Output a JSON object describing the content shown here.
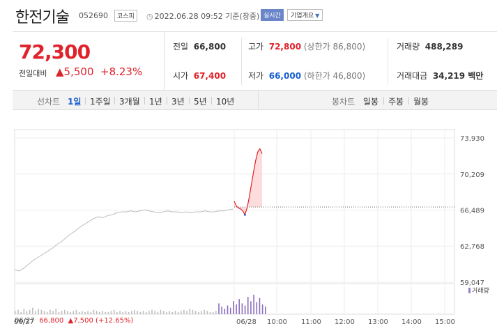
{
  "header": {
    "title": "한전기술",
    "code": "052690",
    "market": "코스피",
    "as_of": "2022.06.28 09:52 기준(장중)",
    "live_label": "실시간",
    "company_info_label": "기업개요",
    "clock_icon": "clock-icon",
    "chevron_icon": "chevron-down-icon"
  },
  "quote": {
    "price": "72,300",
    "change_label": "전일대비",
    "change_value": "5,500",
    "change_pct": "+8.23%",
    "prev_close_label": "전일",
    "prev_close": "66,800",
    "open_label": "시가",
    "open": "67,400",
    "high_label": "고가",
    "high": "72,800",
    "upper_limit": "(상한가 86,800)",
    "low_label": "저가",
    "low": "66,000",
    "lower_limit": "(하한가 46,800)",
    "volume_label": "거래량",
    "volume": "488,289",
    "value_label": "거래대금",
    "value": "34,219 백만",
    "colors": {
      "up": "#e0222a",
      "down": "#1a5fd0"
    }
  },
  "tabs": {
    "line_label": "선차트",
    "line_periods": [
      "1일",
      "1주일",
      "3개월",
      "1년",
      "3년",
      "5년",
      "10년"
    ],
    "active": "1일",
    "candle_label": "봉차트",
    "candle_periods": [
      "일봉",
      "주봉",
      "월봉"
    ]
  },
  "chart_data": {
    "type": "line",
    "y_ticks": [
      "73,930",
      "70,209",
      "66,489",
      "62,768",
      "59,047"
    ],
    "ylim": [
      59047,
      73930
    ],
    "reference_price": 66800,
    "x_ticks": [
      "06/27",
      "06/28",
      "10:00",
      "11:00",
      "12:00",
      "13:00",
      "14:00",
      "15:00"
    ],
    "series": [
      {
        "values": [
          60300,
          60200,
          60500,
          60900,
          61300,
          61600,
          61900,
          62200,
          62500,
          62900,
          63200,
          63600,
          64000,
          64300,
          64700,
          65000,
          65300,
          65600,
          65800,
          65700,
          65900,
          66000,
          66200,
          66300,
          66300,
          66400,
          66300,
          66400,
          66500,
          66400,
          66300,
          66200,
          66300,
          66400,
          66300,
          66300,
          66200,
          66300,
          66200,
          66300,
          66300,
          66400,
          66300,
          66300,
          66400,
          66400,
          66500,
          66600
        ]
      },
      {
        "values": [
          67400,
          66900,
          66700,
          66600,
          66400,
          66000,
          66700,
          67800,
          69100,
          70400,
          71600,
          72500,
          72800,
          72300
        ]
      }
    ],
    "volume_label": "거래량",
    "volume": [
      3,
      4,
      2,
      5,
      3,
      4,
      6,
      3,
      5,
      4,
      3,
      2,
      4,
      3,
      5,
      2,
      3,
      4,
      3,
      2,
      3,
      4,
      2,
      3,
      2,
      3,
      2,
      4,
      3,
      2,
      3,
      2,
      2,
      3,
      4,
      2,
      3,
      2,
      3,
      2,
      3,
      4,
      3,
      2,
      3,
      2,
      3,
      4,
      3,
      2,
      4,
      3,
      2,
      3,
      2,
      3,
      2,
      3,
      4,
      3,
      5,
      4,
      3,
      2,
      3,
      4,
      3,
      2,
      2,
      3,
      10,
      7,
      5,
      8,
      6,
      12,
      9,
      14,
      10,
      8,
      16,
      12,
      18,
      11,
      15,
      9,
      7
    ]
  },
  "footer": {
    "date": "06/27",
    "price": "66,800",
    "change": "▲7,500 (+12.65%)"
  }
}
